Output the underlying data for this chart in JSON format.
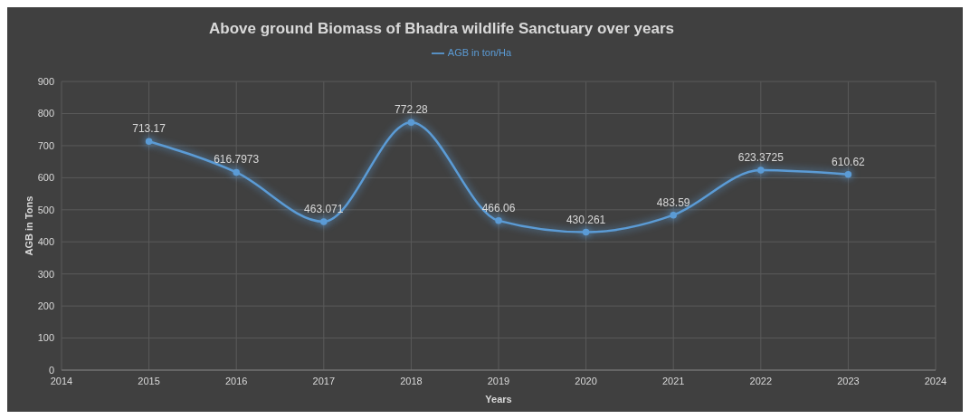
{
  "chart_data": {
    "type": "line",
    "title": "Above ground Biomass of Bhadra wildlife Sanctuary over years",
    "xlabel": "Years",
    "ylabel": "AGB in Tons",
    "x": [
      2015,
      2016,
      2017,
      2018,
      2019,
      2020,
      2021,
      2022,
      2023
    ],
    "series": [
      {
        "name": "AGB in ton/Ha",
        "color": "#5b9bd5",
        "values": [
          713.17,
          616.7973,
          463.071,
          772.28,
          466.06,
          430.261,
          483.59,
          623.3725,
          610.62
        ]
      }
    ],
    "xlim": [
      2014,
      2024
    ],
    "xticks": [
      2014,
      2015,
      2016,
      2017,
      2018,
      2019,
      2020,
      2021,
      2022,
      2023,
      2024
    ],
    "ylim": [
      0,
      900
    ],
    "yticks": [
      0,
      100,
      200,
      300,
      400,
      500,
      600,
      700,
      800,
      900
    ],
    "grid": true,
    "legend": "top",
    "marker": "circle",
    "line_style": "solid",
    "data_labels": true
  }
}
